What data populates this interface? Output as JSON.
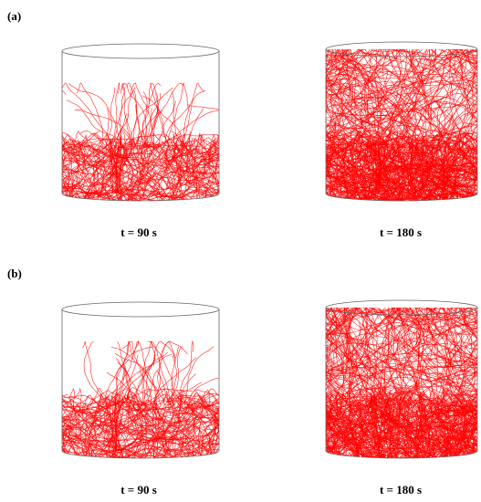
{
  "panels": [
    {
      "label": "(a)",
      "images": [
        {
          "caption": "t = 90 s"
        },
        {
          "caption": "t = 180 s"
        }
      ]
    },
    {
      "label": "(b)",
      "images": [
        {
          "caption": "t = 90 s"
        },
        {
          "caption": "t = 180 s"
        }
      ]
    }
  ]
}
